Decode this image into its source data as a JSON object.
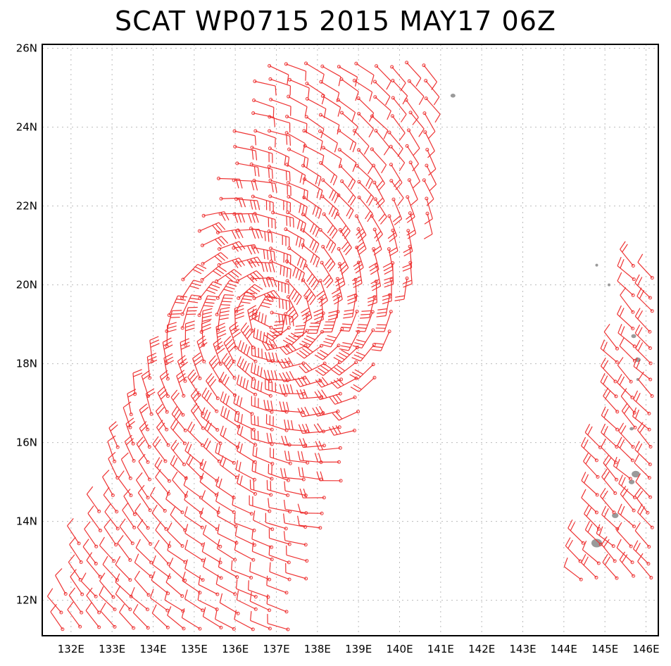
{
  "title": "SCAT WP0715 2015 MAY17 06Z",
  "chart_data": {
    "type": "wind-barb-map",
    "lon_range": [
      131.3,
      146.3
    ],
    "lat_range": [
      11.1,
      26.1
    ],
    "x_ticks": [
      "132E",
      "133E",
      "134E",
      "135E",
      "136E",
      "137E",
      "138E",
      "139E",
      "140E",
      "141E",
      "142E",
      "143E",
      "144E",
      "145E",
      "146E"
    ],
    "x_tick_values": [
      132,
      133,
      134,
      135,
      136,
      137,
      138,
      139,
      140,
      141,
      142,
      143,
      144,
      145,
      146
    ],
    "y_ticks": [
      "12N",
      "14N",
      "16N",
      "18N",
      "20N",
      "22N",
      "24N",
      "26N"
    ],
    "y_tick_values": [
      12,
      14,
      16,
      18,
      20,
      22,
      24,
      26
    ],
    "grid": true,
    "storm_center": {
      "lon": 136.9,
      "lat": 19.2
    },
    "barb_color": "#ee3333",
    "land_color": "#9a9a9a",
    "islands": [
      {
        "lon": 141.3,
        "lat": 24.8,
        "r": 0.06
      },
      {
        "lon": 144.8,
        "lat": 20.5,
        "r": 0.03
      },
      {
        "lon": 145.1,
        "lat": 20.0,
        "r": 0.025
      },
      {
        "lon": 145.7,
        "lat": 18.7,
        "r": 0.06
      },
      {
        "lon": 145.8,
        "lat": 18.1,
        "r": 0.07
      },
      {
        "lon": 145.8,
        "lat": 17.6,
        "r": 0.03
      },
      {
        "lon": 145.65,
        "lat": 16.35,
        "r": 0.05
      },
      {
        "lon": 145.75,
        "lat": 15.2,
        "r": 0.1
      },
      {
        "lon": 145.65,
        "lat": 15.0,
        "r": 0.07
      },
      {
        "lon": 145.25,
        "lat": 14.15,
        "r": 0.08
      },
      {
        "lon": 144.8,
        "lat": 13.45,
        "r": 0.13
      }
    ]
  }
}
